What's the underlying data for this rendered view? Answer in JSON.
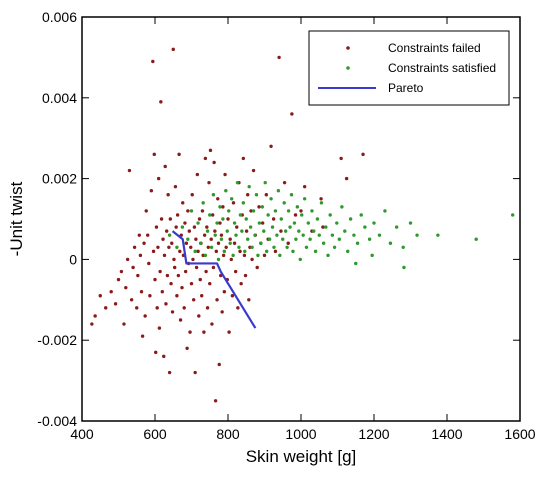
{
  "chart_data": {
    "type": "scatter",
    "title": "",
    "xlabel": "Skin weight [g]",
    "ylabel": "-Unit twist",
    "xlim": [
      400,
      1600
    ],
    "ylim": [
      -0.004,
      0.006
    ],
    "xticks": [
      400,
      600,
      800,
      1000,
      1200,
      1400,
      1600
    ],
    "yticks": [
      -0.004,
      -0.002,
      0,
      0.002,
      0.004,
      0.006
    ],
    "xtick_labels": [
      "400",
      "600",
      "800",
      "1000",
      "1200",
      "1400",
      "1600"
    ],
    "ytick_labels": [
      "-0.004",
      "-0.002",
      "0",
      "0.002",
      "0.004",
      "0.006"
    ],
    "grid": false,
    "legend_position": "top-right",
    "colors": {
      "failed": "#8b1a1a",
      "satisfied": "#2e9a2e",
      "pareto": "#3a3ad0"
    },
    "series": [
      {
        "name": "Constraints failed",
        "kind": "scatter",
        "points": [
          [
            427,
            -0.0016
          ],
          [
            436,
            -0.0014
          ],
          [
            450,
            -0.0009
          ],
          [
            465,
            -0.0012
          ],
          [
            480,
            -0.0008
          ],
          [
            492,
            -0.0011
          ],
          [
            500,
            -0.0005
          ],
          [
            508,
            -0.0003
          ],
          [
            515,
            -0.0016
          ],
          [
            520,
            -0.0007
          ],
          [
            525,
            0.0
          ],
          [
            530,
            0.0022
          ],
          [
            536,
            -0.001
          ],
          [
            540,
            -0.0002
          ],
          [
            544,
            0.0003
          ],
          [
            550,
            -0.0012
          ],
          [
            553,
            -0.0004
          ],
          [
            557,
            0.0006
          ],
          [
            560,
            0.0001
          ],
          [
            563,
            -0.0008
          ],
          [
            566,
            -0.0019
          ],
          [
            570,
            0.0004
          ],
          [
            573,
            -0.0014
          ],
          [
            576,
            0.0012
          ],
          [
            580,
            0.0006
          ],
          [
            583,
            -0.0001
          ],
          [
            586,
            -0.0009
          ],
          [
            590,
            0.0017
          ],
          [
            594,
            0.0049
          ],
          [
            596,
            0.0002
          ],
          [
            598,
            0.0026
          ],
          [
            600,
            -0.0005
          ],
          [
            602,
            -0.0023
          ],
          [
            604,
            0.0008
          ],
          [
            606,
            -0.0012
          ],
          [
            608,
            0.0003
          ],
          [
            610,
            0.002
          ],
          [
            612,
            -0.0017
          ],
          [
            614,
            -0.0003
          ],
          [
            616,
            0.0039
          ],
          [
            618,
            0.001
          ],
          [
            620,
            -0.0008
          ],
          [
            622,
            0.0005
          ],
          [
            624,
            -0.0024
          ],
          [
            626,
            0.0001
          ],
          [
            628,
            0.0023
          ],
          [
            630,
            -0.0011
          ],
          [
            632,
            0.0007
          ],
          [
            634,
            -0.0004
          ],
          [
            636,
            0.0016
          ],
          [
            638,
            0.0003
          ],
          [
            640,
            -0.0028
          ],
          [
            642,
            0.001
          ],
          [
            644,
            -0.0006
          ],
          [
            646,
            0.0004
          ],
          [
            648,
            -0.0013
          ],
          [
            650,
            0.0052
          ],
          [
            652,
            0.0
          ],
          [
            654,
            -0.0002
          ],
          [
            656,
            0.0018
          ],
          [
            658,
            0.0008
          ],
          [
            660,
            -0.0009
          ],
          [
            662,
            0.0011
          ],
          [
            664,
            -0.0004
          ],
          [
            666,
            0.0026
          ],
          [
            668,
            0.0002
          ],
          [
            670,
            -0.0015
          ],
          [
            672,
            0.0006
          ],
          [
            674,
            -0.0007
          ],
          [
            676,
            0.0014
          ],
          [
            678,
            0.0001
          ],
          [
            680,
            -0.0012
          ],
          [
            682,
            0.0009
          ],
          [
            684,
            -0.0003
          ],
          [
            686,
            0.0004
          ],
          [
            688,
            -0.0022
          ],
          [
            690,
            0.0012
          ],
          [
            692,
            -0.0001
          ],
          [
            694,
            0.0007
          ],
          [
            696,
            -0.0018
          ],
          [
            698,
            0.0003
          ],
          [
            700,
            -0.0006
          ],
          [
            702,
            0.0016
          ],
          [
            704,
            0.0
          ],
          [
            706,
            -0.001
          ],
          [
            708,
            0.0008
          ],
          [
            710,
            -0.0028
          ],
          [
            712,
            0.0005
          ],
          [
            714,
            -0.0002
          ],
          [
            716,
            0.0021
          ],
          [
            718,
            0.0002
          ],
          [
            720,
            -0.0014
          ],
          [
            722,
            0.001
          ],
          [
            724,
            -0.0005
          ],
          [
            726,
            0.0004
          ],
          [
            728,
            -0.0009
          ],
          [
            730,
            0.0012
          ],
          [
            732,
            0.0001
          ],
          [
            734,
            -0.0018
          ],
          [
            736,
            0.0006
          ],
          [
            738,
            0.0025
          ],
          [
            740,
            -0.0003
          ],
          [
            742,
            0.0008
          ],
          [
            744,
            -0.0012
          ],
          [
            746,
            0.0003
          ],
          [
            748,
            0.0019
          ],
          [
            750,
            -0.0006
          ],
          [
            752,
            0.0027
          ],
          [
            754,
            0.0005
          ],
          [
            756,
            -0.0016
          ],
          [
            758,
            0.0011
          ],
          [
            760,
            -0.0002
          ],
          [
            762,
            0.0024
          ],
          [
            764,
            0.0007
          ],
          [
            766,
            -0.0035
          ],
          [
            768,
            0.0002
          ],
          [
            770,
            -0.001
          ],
          [
            772,
            0.0015
          ],
          [
            774,
            0.0004
          ],
          [
            776,
            -0.0026
          ],
          [
            778,
            0.0009
          ],
          [
            780,
            -0.0004
          ],
          [
            782,
            0.0006
          ],
          [
            784,
            -0.0013
          ],
          [
            786,
            0.0013
          ],
          [
            788,
            0.0001
          ],
          [
            790,
            -0.0008
          ],
          [
            792,
            0.0021
          ],
          [
            795,
            0.0003
          ],
          [
            798,
            -0.0005
          ],
          [
            800,
            0.001
          ],
          [
            803,
            -0.0018
          ],
          [
            806,
            0.0005
          ],
          [
            809,
            0.0
          ],
          [
            812,
            -0.0009
          ],
          [
            815,
            0.0014
          ],
          [
            818,
            0.0004
          ],
          [
            821,
            -0.0003
          ],
          [
            824,
            0.0008
          ],
          [
            827,
            -0.0012
          ],
          [
            830,
            0.0019
          ],
          [
            833,
            0.0002
          ],
          [
            836,
            -0.0006
          ],
          [
            839,
            0.0011
          ],
          [
            842,
            0.0025
          ],
          [
            845,
            0.0001
          ],
          [
            848,
            -0.0004
          ],
          [
            851,
            0.0007
          ],
          [
            854,
            0.0016
          ],
          [
            857,
            -0.001
          ],
          [
            860,
            0.0003
          ],
          [
            863,
            0.0012
          ],
          [
            866,
            0.0
          ],
          [
            870,
            0.0022
          ],
          [
            875,
            0.0006
          ],
          [
            880,
            -0.0002
          ],
          [
            885,
            0.0013
          ],
          [
            890,
            0.0004
          ],
          [
            895,
            0.0009
          ],
          [
            900,
            0.0001
          ],
          [
            905,
            0.0016
          ],
          [
            910,
            0.0005
          ],
          [
            918,
            0.0028
          ],
          [
            925,
            0.001
          ],
          [
            930,
            0.0002
          ],
          [
            940,
            0.005
          ],
          [
            945,
            0.0007
          ],
          [
            955,
            0.0019
          ],
          [
            965,
            0.0004
          ],
          [
            975,
            0.0036
          ],
          [
            985,
            0.0011
          ],
          [
            1000,
            0.0012
          ],
          [
            1010,
            0.0018
          ],
          [
            1030,
            0.0007
          ],
          [
            1055,
            0.0015
          ],
          [
            1110,
            0.0025
          ],
          [
            1125,
            0.002
          ],
          [
            1170,
            0.0026
          ],
          [
            1060,
            0.0008
          ]
        ]
      },
      {
        "name": "Constraints satisfied",
        "kind": "scatter",
        "points": [
          [
            640,
            0.0006
          ],
          [
            660,
            0.0003
          ],
          [
            675,
            0.0008
          ],
          [
            690,
            0.0005
          ],
          [
            700,
            0.0012
          ],
          [
            710,
            0.0002
          ],
          [
            718,
            0.0009
          ],
          [
            725,
            0.0004
          ],
          [
            732,
            0.0014
          ],
          [
            738,
            0.0001
          ],
          [
            744,
            0.0007
          ],
          [
            750,
            0.0011
          ],
          [
            755,
            0.0003
          ],
          [
            760,
            0.0016
          ],
          [
            765,
            0.0006
          ],
          [
            770,
            0.0009
          ],
          [
            774,
            0.0
          ],
          [
            778,
            0.0013
          ],
          [
            782,
            0.0005
          ],
          [
            786,
            0.001
          ],
          [
            790,
            0.0002
          ],
          [
            794,
            0.0017
          ],
          [
            798,
            0.0007
          ],
          [
            802,
            0.0012
          ],
          [
            806,
            0.0004
          ],
          [
            810,
            0.0015
          ],
          [
            814,
            0.0001
          ],
          [
            818,
            0.0009
          ],
          [
            822,
            0.0006
          ],
          [
            826,
            0.0019
          ],
          [
            830,
            0.0003
          ],
          [
            834,
            0.0011
          ],
          [
            838,
            0.0007
          ],
          [
            842,
            0.0014
          ],
          [
            846,
            0.0002
          ],
          [
            850,
            0.001
          ],
          [
            854,
            0.0005
          ],
          [
            858,
            0.0018
          ],
          [
            862,
            0.0008
          ],
          [
            866,
            0.0003
          ],
          [
            870,
            0.0012
          ],
          [
            874,
            0.0006
          ],
          [
            878,
            0.0016
          ],
          [
            882,
            0.0001
          ],
          [
            886,
            0.0009
          ],
          [
            890,
            0.0004
          ],
          [
            894,
            0.0013
          ],
          [
            898,
            0.0007
          ],
          [
            902,
            0.0019
          ],
          [
            906,
            0.0002
          ],
          [
            910,
            0.0011
          ],
          [
            914,
            0.0005
          ],
          [
            918,
            0.0015
          ],
          [
            922,
            0.0008
          ],
          [
            926,
            0.0003
          ],
          [
            930,
            0.0012
          ],
          [
            934,
            0.0006
          ],
          [
            938,
            0.0017
          ],
          [
            942,
            0.0001
          ],
          [
            946,
            0.001
          ],
          [
            950,
            0.0005
          ],
          [
            954,
            0.0014
          ],
          [
            958,
            0.0007
          ],
          [
            962,
            0.0003
          ],
          [
            966,
            0.0012
          ],
          [
            970,
            0.0008
          ],
          [
            974,
            0.0016
          ],
          [
            978,
            0.0002
          ],
          [
            982,
            0.0009
          ],
          [
            986,
            0.0005
          ],
          [
            990,
            0.0013
          ],
          [
            994,
            0.0007
          ],
          [
            998,
            0.0
          ],
          [
            1002,
            0.0011
          ],
          [
            1006,
            0.0006
          ],
          [
            1010,
            0.0015
          ],
          [
            1015,
            0.0003
          ],
          [
            1020,
            0.0009
          ],
          [
            1025,
            0.0005
          ],
          [
            1030,
            0.0012
          ],
          [
            1035,
            0.0007
          ],
          [
            1040,
            0.0002
          ],
          [
            1045,
            0.001
          ],
          [
            1050,
            0.0006
          ],
          [
            1056,
            0.0014
          ],
          [
            1062,
            0.0004
          ],
          [
            1068,
            0.0008
          ],
          [
            1074,
            0.0001
          ],
          [
            1080,
            0.0011
          ],
          [
            1086,
            0.0006
          ],
          [
            1092,
            0.0003
          ],
          [
            1098,
            0.0009
          ],
          [
            1105,
            0.0005
          ],
          [
            1112,
            0.0013
          ],
          [
            1120,
            0.0007
          ],
          [
            1128,
            0.0002
          ],
          [
            1136,
            0.001
          ],
          [
            1145,
            0.0006
          ],
          [
            1155,
            0.0004
          ],
          [
            1165,
            0.0011
          ],
          [
            1175,
            0.0008
          ],
          [
            1188,
            0.0005
          ],
          [
            1200,
            0.0009
          ],
          [
            1215,
            0.0006
          ],
          [
            1230,
            0.0012
          ],
          [
            1245,
            0.0004
          ],
          [
            1262,
            0.0008
          ],
          [
            1280,
            0.0003
          ],
          [
            1300,
            0.0009
          ],
          [
            1318,
            0.0006
          ],
          [
            1375,
            0.0006
          ],
          [
            1480,
            0.0005
          ],
          [
            1580,
            0.0011
          ],
          [
            1282,
            -0.0002
          ],
          [
            1195,
            0.0001
          ],
          [
            1150,
            -0.0001
          ]
        ]
      },
      {
        "name": "Pareto",
        "kind": "line",
        "points": [
          [
            648,
            0.0007
          ],
          [
            676,
            0.0005
          ],
          [
            686,
            -0.0001
          ],
          [
            725,
            -0.0001
          ],
          [
            770,
            -0.0001
          ],
          [
            780,
            -0.0003
          ],
          [
            875,
            -0.0017
          ]
        ]
      }
    ]
  }
}
